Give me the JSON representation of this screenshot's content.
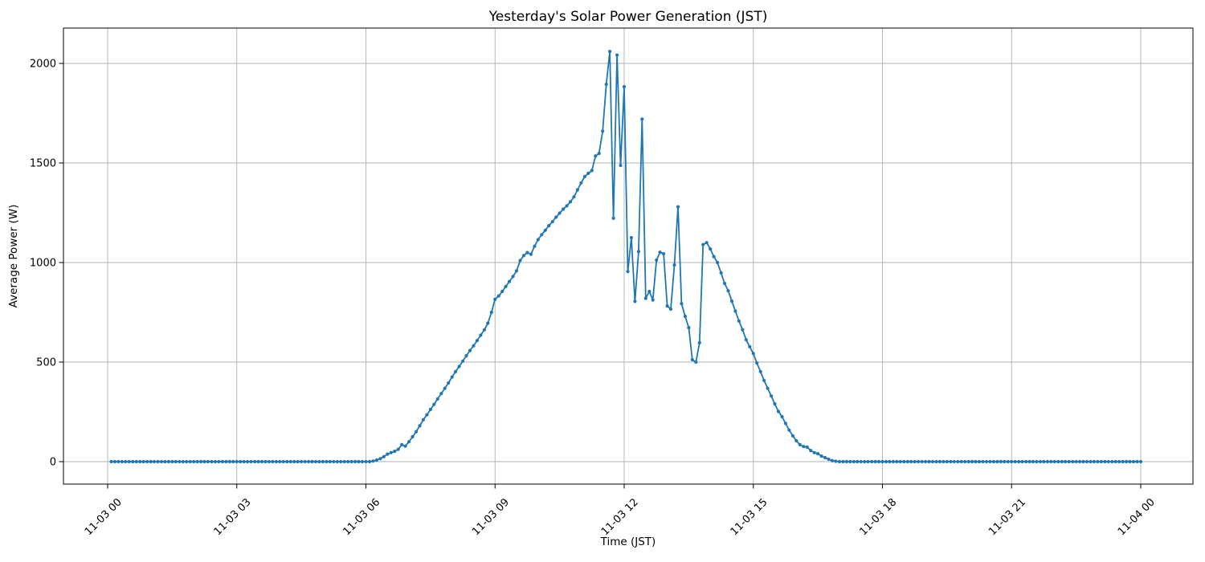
{
  "chart_data": {
    "type": "line",
    "title": "Yesterday's Solar Power Generation (JST)",
    "xlabel": "Time (JST)",
    "ylabel": "Average Power (W)",
    "legend": "none",
    "grid": true,
    "grid_color": "#b0b0b0",
    "line_color": "#1f77b4",
    "marker": "circle",
    "x_tick_labels": [
      "11-03 00",
      "11-03 03",
      "11-03 06",
      "11-03 09",
      "11-03 12",
      "11-03 15",
      "11-03 18",
      "11-03 21",
      "11-04 00"
    ],
    "x_tick_hours": [
      0,
      3,
      6,
      9,
      12,
      15,
      18,
      21,
      24
    ],
    "x_tick_rotation_deg": 45,
    "y_ticks": [
      0,
      500,
      1000,
      1500,
      2000
    ],
    "ylim": [
      -113,
      2177
    ],
    "xlim_hours": [
      -1.03,
      25.21
    ],
    "series": {
      "name": "average_power_w",
      "start_minute": 5,
      "step_minutes": 5,
      "values": [
        0,
        0,
        0,
        0,
        0,
        0,
        0,
        0,
        0,
        0,
        0,
        0,
        0,
        0,
        0,
        0,
        0,
        0,
        0,
        0,
        0,
        0,
        0,
        0,
        0,
        0,
        0,
        0,
        0,
        0,
        0,
        0,
        0,
        0,
        0,
        0,
        0,
        0,
        0,
        0,
        0,
        0,
        0,
        0,
        0,
        0,
        0,
        0,
        0,
        0,
        0,
        0,
        0,
        0,
        0,
        0,
        0,
        0,
        0,
        0,
        0,
        0,
        0,
        0,
        0,
        0,
        0,
        0,
        0,
        0,
        0,
        0,
        0,
        3,
        8,
        15,
        25,
        38,
        45,
        52,
        62,
        85,
        78,
        100,
        125,
        150,
        180,
        210,
        235,
        262,
        288,
        315,
        342,
        368,
        395,
        425,
        452,
        478,
        505,
        532,
        558,
        582,
        608,
        635,
        662,
        695,
        750,
        815,
        832,
        855,
        880,
        905,
        930,
        958,
        1010,
        1035,
        1050,
        1042,
        1082,
        1115,
        1140,
        1162,
        1185,
        1205,
        1228,
        1248,
        1268,
        1285,
        1305,
        1330,
        1365,
        1400,
        1432,
        1448,
        1462,
        1535,
        1548,
        1660,
        1895,
        2060,
        1222,
        2042,
        1488,
        1883,
        955,
        1125,
        805,
        1055,
        1720,
        820,
        855,
        812,
        1012,
        1052,
        1044,
        782,
        766,
        988,
        1280,
        794,
        730,
        673,
        512,
        500,
        597,
        1090,
        1100,
        1068,
        1030,
        1000,
        948,
        895,
        858,
        806,
        756,
        706,
        663,
        612,
        577,
        543,
        495,
        452,
        408,
        368,
        330,
        290,
        252,
        226,
        192,
        158,
        130,
        105,
        85,
        76,
        73,
        56,
        45,
        40,
        28,
        20,
        12,
        5,
        2,
        0,
        0,
        0,
        0,
        0,
        0,
        0,
        0,
        0,
        0,
        0,
        0,
        0,
        0,
        0,
        0,
        0,
        0,
        0,
        0,
        0,
        0,
        0,
        0,
        0,
        0,
        0,
        0,
        0,
        0,
        0,
        0,
        0,
        0,
        0,
        0,
        0,
        0,
        0,
        0,
        0,
        0,
        0,
        0,
        0,
        0,
        0,
        0,
        0,
        0,
        0,
        0,
        0,
        0,
        0,
        0,
        0,
        0,
        0,
        0,
        0,
        0,
        0,
        0,
        0,
        0,
        0,
        0,
        0,
        0,
        0,
        0,
        0,
        0,
        0,
        0,
        0,
        0,
        0,
        0,
        0,
        0,
        0,
        0,
        0
      ]
    }
  }
}
